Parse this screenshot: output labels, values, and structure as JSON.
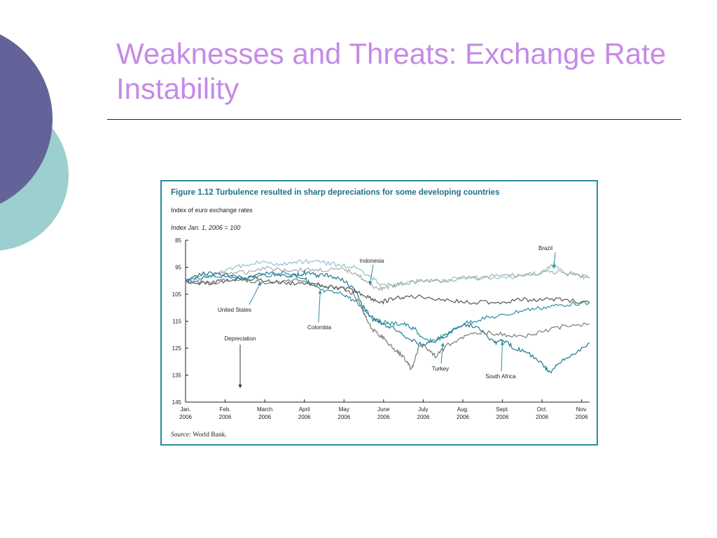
{
  "slide": {
    "title": "Weaknesses and Threats: Exchange Rate Instability",
    "colors": {
      "title": "#c58ae6",
      "circle_dark": "#63639a",
      "circle_light": "#9ccfd0",
      "frame": "#2a8aa0"
    }
  },
  "figure": {
    "title": "Figure 1.12  Turbulence resulted in sharp depreciations for some developing countries",
    "subtitle": "Index of euro exchange rates",
    "index_note": "Index Jan. 1, 2006 = 100",
    "source_label": "Source:",
    "source_text": "World Bank."
  },
  "chart_data": {
    "type": "line",
    "title": "Figure 1.12  Turbulence resulted in sharp depreciations for some developing countries",
    "ylabel": "Index Jan. 1, 2006 = 100",
    "ylim": [
      85,
      145
    ],
    "y_inverted": true,
    "yticks": [
      85,
      95,
      105,
      115,
      125,
      135,
      145
    ],
    "x_categories": [
      [
        "Jan.",
        "2006"
      ],
      [
        "Feb.",
        "2006"
      ],
      [
        "March",
        "2006"
      ],
      [
        "April",
        "2006"
      ],
      [
        "May",
        "2006"
      ],
      [
        "June",
        "2006"
      ],
      [
        "July",
        "2006"
      ],
      [
        "Aug.",
        "2006"
      ],
      [
        "Sept.",
        "2006"
      ],
      [
        "Oct.",
        "2006"
      ],
      [
        "Nov.",
        "2006"
      ]
    ],
    "xlim": [
      0,
      10.2
    ],
    "grid": false,
    "series": [
      {
        "name": "Brazil",
        "color": "#8fc3cf",
        "x": [
          0,
          0.5,
          0.9,
          1.3,
          1.8,
          2.3,
          2.8,
          3.3,
          3.8,
          4.3,
          4.6,
          4.9,
          5.2,
          5.5,
          6.0,
          6.5,
          7.0,
          7.5,
          8.0,
          8.5,
          9.0,
          9.3,
          9.6,
          9.9,
          10.2
        ],
        "y": [
          100,
          99,
          97,
          95,
          93,
          94,
          93,
          93,
          94,
          95,
          98,
          101,
          102,
          101,
          100,
          100,
          99,
          99,
          99,
          98,
          97,
          94,
          97,
          98,
          99
        ]
      },
      {
        "name": "Indonesia",
        "color": "#a8a8a8",
        "x": [
          0,
          0.5,
          1.0,
          1.5,
          2.0,
          2.5,
          3.0,
          3.5,
          4.0,
          4.3,
          4.6,
          4.9,
          5.2,
          5.5,
          6.0,
          6.5,
          7.0,
          7.5,
          8.0,
          8.5,
          9.0,
          9.5,
          10.2
        ],
        "y": [
          100,
          98,
          97,
          97,
          95,
          96,
          96,
          96,
          96,
          97,
          101,
          103,
          102,
          101,
          100,
          100,
          99,
          99,
          98,
          98,
          97,
          97,
          99
        ]
      },
      {
        "name": "United States",
        "color": "#555555",
        "x": [
          0,
          0.5,
          1.0,
          1.5,
          2.0,
          2.5,
          3.0,
          3.5,
          4.0,
          4.3,
          4.6,
          4.9,
          5.2,
          5.5,
          6.0,
          6.5,
          7.0,
          7.5,
          8.0,
          8.5,
          9.0,
          9.5,
          10.2
        ],
        "y": [
          100,
          101,
          100,
          99,
          100,
          101,
          101,
          102,
          103,
          104,
          106,
          108,
          107,
          106,
          106,
          107,
          108,
          108,
          108,
          107,
          107,
          107,
          108
        ]
      },
      {
        "name": "Colombia",
        "color": "#2b8ea3",
        "x": [
          0,
          0.5,
          1.0,
          1.5,
          2.0,
          2.5,
          3.0,
          3.2,
          3.5,
          4.0,
          4.3,
          4.6,
          4.9,
          5.2,
          5.5,
          5.8,
          6.0,
          6.3,
          6.6,
          7.0,
          7.5,
          8.0,
          8.5,
          9.0,
          9.5,
          10.2
        ],
        "y": [
          100,
          99,
          98,
          99,
          98,
          97,
          99,
          102,
          104,
          105,
          108,
          112,
          115,
          116,
          116,
          118,
          122,
          122,
          120,
          116,
          114,
          113,
          111,
          110,
          109,
          108
        ]
      },
      {
        "name": "South Africa",
        "color": "#1a7a92",
        "x": [
          0,
          0.5,
          1.0,
          1.5,
          2.0,
          2.5,
          2.8,
          3.0,
          3.3,
          3.6,
          4.0,
          4.3,
          4.5,
          4.7,
          5.0,
          5.3,
          5.6,
          6.0,
          6.5,
          7.0,
          7.4,
          7.8,
          8.0,
          8.3,
          8.6,
          9.0,
          9.2,
          9.5,
          9.8,
          10.2
        ],
        "y": [
          100,
          97,
          98,
          99,
          97,
          98,
          98,
          97,
          98,
          98,
          100,
          104,
          110,
          114,
          116,
          118,
          121,
          124,
          121,
          116,
          117,
          123,
          122,
          125,
          126,
          131,
          134,
          130,
          127,
          123
        ]
      },
      {
        "name": "Turkey",
        "color": "#7a7a7a",
        "x": [
          0,
          0.5,
          1.0,
          1.5,
          2.0,
          2.5,
          3.0,
          3.5,
          4.0,
          4.3,
          4.5,
          4.7,
          4.9,
          5.1,
          5.3,
          5.5,
          5.7,
          5.9,
          6.1,
          6.3,
          6.6,
          7.0,
          7.5,
          8.0,
          8.5,
          9.0,
          9.5,
          10.2
        ],
        "y": [
          100,
          101,
          100,
          100,
          101,
          100,
          100,
          102,
          103,
          106,
          112,
          118,
          120,
          123,
          126,
          128,
          133,
          124,
          125,
          128,
          124,
          121,
          119,
          120,
          121,
          119,
          117,
          116
        ]
      }
    ],
    "annotations": [
      {
        "text": "Brazil"
      },
      {
        "text": "Indonesia"
      },
      {
        "text": "United States"
      },
      {
        "text": "Colombia"
      },
      {
        "text": "Depreciation"
      },
      {
        "text": "Turkey"
      },
      {
        "text": "South Africa"
      }
    ]
  }
}
